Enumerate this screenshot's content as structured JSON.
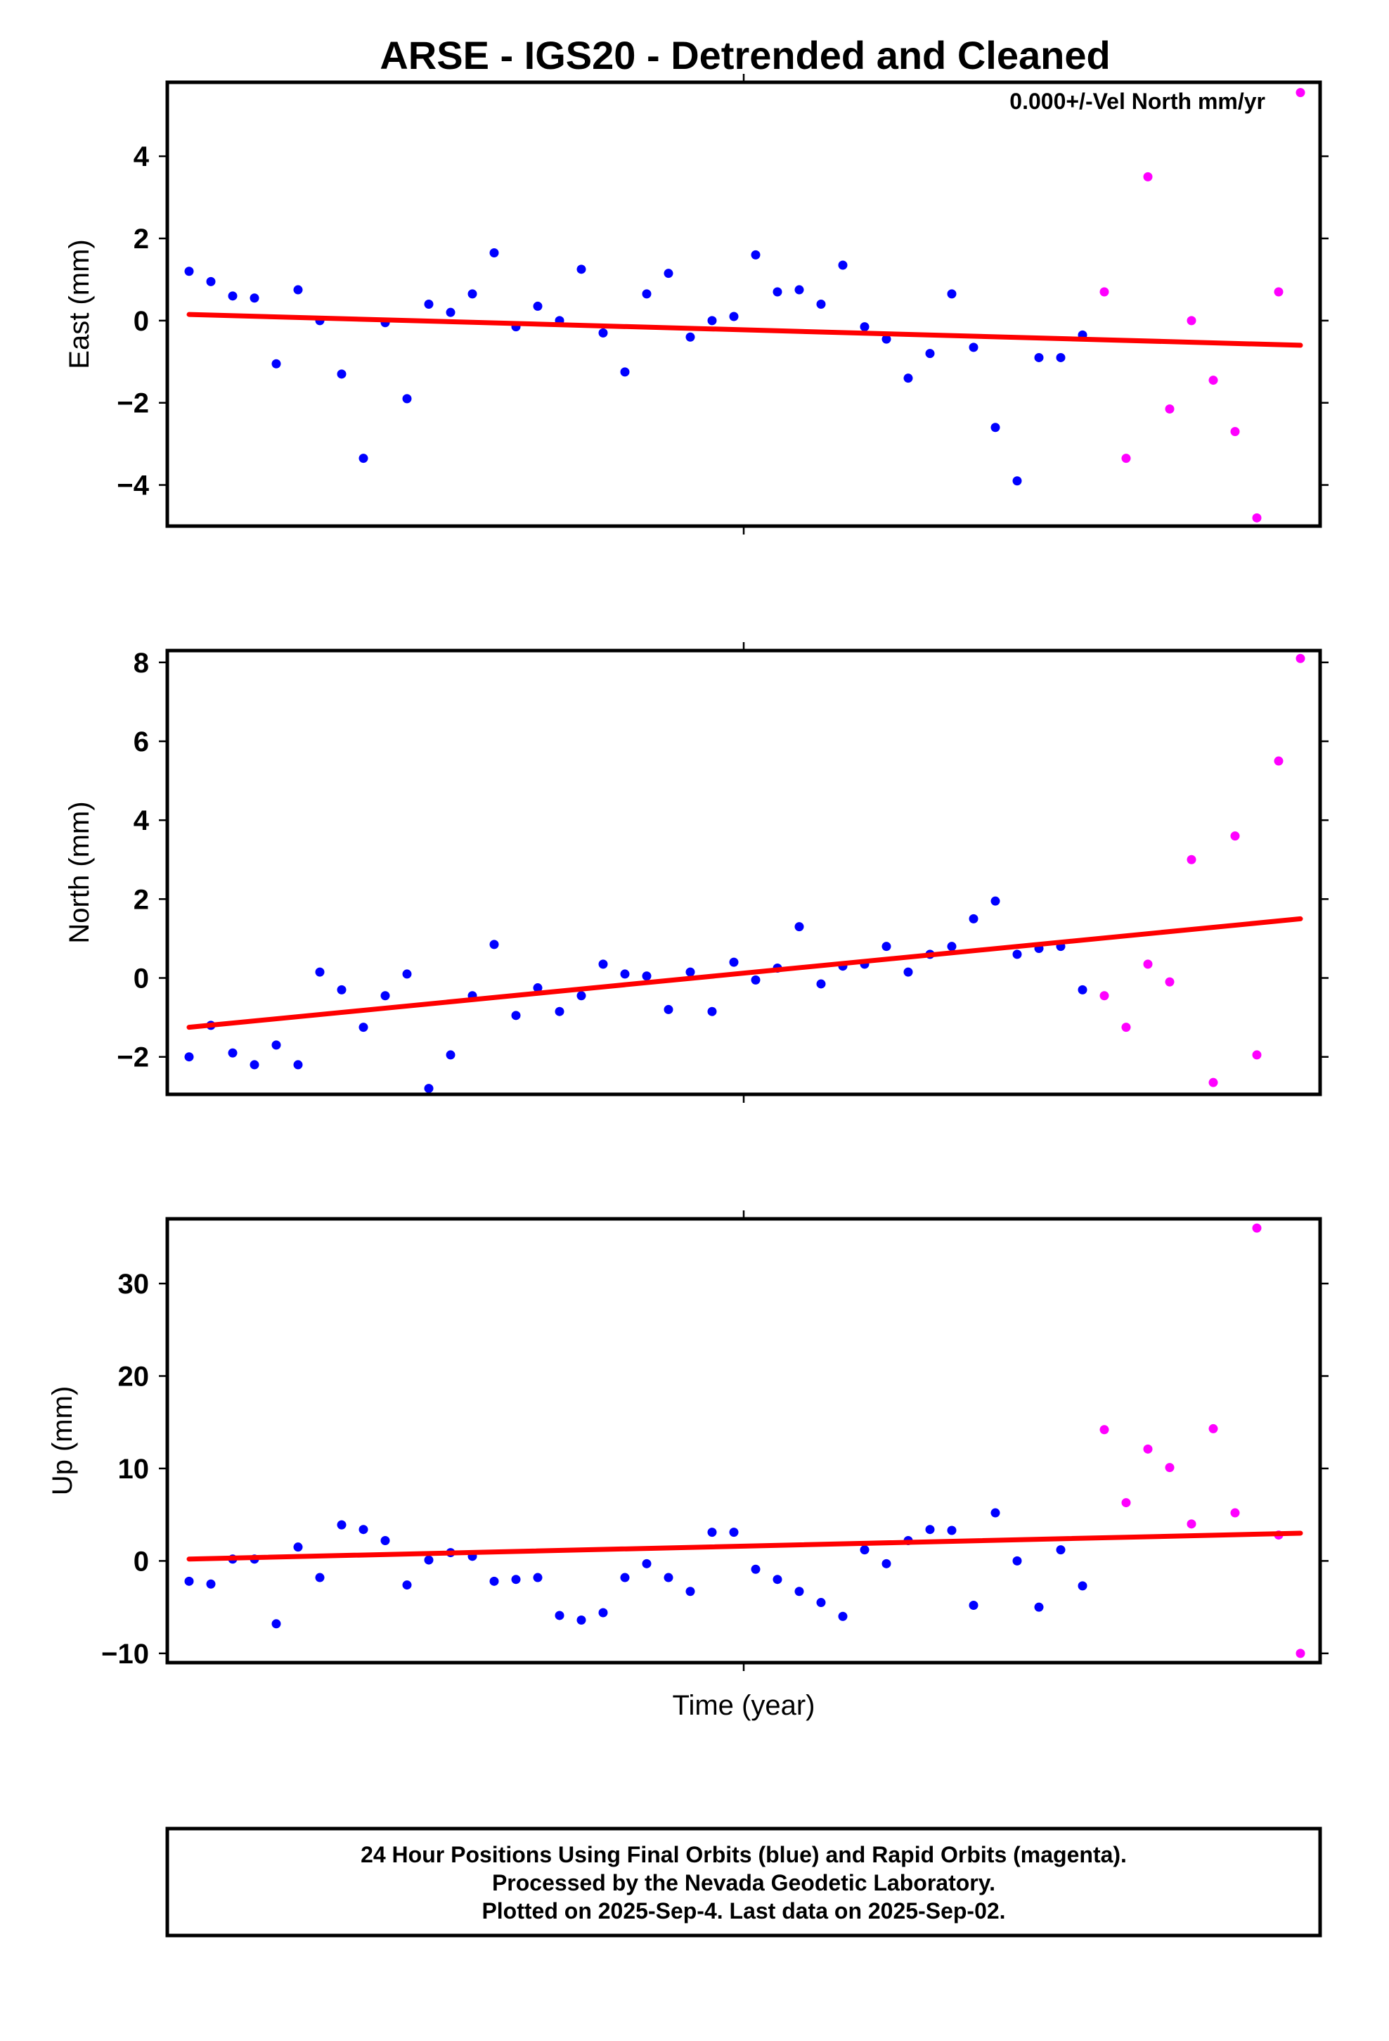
{
  "chart_data": {
    "type": "scatter",
    "title": "ARSE - IGS20 - Detrended and Cleaned",
    "xlabel": "Time (year)",
    "annotation": "0.000+/-Vel North mm/yr",
    "colors": {
      "final": "#0000ff",
      "rapid": "#ff00ff",
      "trend": "#ff0000",
      "axis": "#000000"
    },
    "panels": [
      {
        "id": "east",
        "ylabel": "East (mm)",
        "ylim": [
          -5.0,
          5.8
        ],
        "yticks": [
          4,
          2,
          0,
          -2,
          -4
        ],
        "ytick_labels": [
          "4",
          "2",
          "0",
          "−2",
          "−4"
        ],
        "trend": [
          0.15,
          -0.6
        ],
        "series": [
          {
            "name": "final",
            "x": [
              0,
              1,
              2,
              3,
              4,
              5,
              6,
              7,
              8,
              9,
              10,
              11,
              12,
              13,
              14,
              15,
              16,
              17,
              18,
              19,
              20,
              21,
              22,
              23,
              24,
              25,
              26,
              27,
              28,
              29,
              30,
              31,
              32,
              33,
              34,
              35,
              36,
              37,
              38,
              39,
              40,
              41
            ],
            "values": [
              1.2,
              0.95,
              0.6,
              0.55,
              -1.05,
              0.75,
              0.0,
              -1.3,
              -3.35,
              -0.05,
              -1.9,
              0.4,
              0.2,
              0.65,
              1.65,
              -0.15,
              0.35,
              0.0,
              1.25,
              -0.3,
              -1.25,
              0.65,
              1.15,
              -0.4,
              0.0,
              0.1,
              1.6,
              0.7,
              0.75,
              0.4,
              1.35,
              -0.15,
              -0.45,
              -1.4,
              -0.8,
              0.65,
              -0.65,
              -2.6,
              -3.9,
              -0.9,
              -0.9,
              -0.35
            ]
          },
          {
            "name": "rapid",
            "x": [
              42,
              43,
              44,
              45,
              46,
              47,
              48,
              49,
              50,
              51
            ],
            "values": [
              0.7,
              -3.35,
              3.5,
              -2.15,
              0.0,
              -1.45,
              -2.7,
              -4.8,
              0.7,
              5.55
            ]
          }
        ]
      },
      {
        "id": "north",
        "ylabel": "North (mm)",
        "ylim": [
          -2.95,
          8.3
        ],
        "yticks": [
          8,
          6,
          4,
          2,
          0,
          -2
        ],
        "ytick_labels": [
          "8",
          "6",
          "4",
          "2",
          "0",
          "−2"
        ],
        "trend": [
          -1.25,
          1.5
        ],
        "series": [
          {
            "name": "final",
            "x": [
              0,
              1,
              2,
              3,
              4,
              5,
              6,
              7,
              8,
              9,
              10,
              11,
              12,
              13,
              14,
              15,
              16,
              17,
              18,
              19,
              20,
              21,
              22,
              23,
              24,
              25,
              26,
              27,
              28,
              29,
              30,
              31,
              32,
              33,
              34,
              35,
              36,
              37,
              38,
              39,
              40,
              41
            ],
            "values": [
              -2.0,
              -1.2,
              -1.9,
              -2.2,
              -1.7,
              -2.2,
              0.15,
              -0.3,
              -1.25,
              -0.45,
              0.1,
              -2.8,
              -1.95,
              -0.45,
              0.85,
              -0.95,
              -0.25,
              -0.85,
              -0.45,
              0.35,
              0.1,
              0.05,
              -0.8,
              0.15,
              -0.85,
              0.4,
              -0.05,
              0.25,
              1.3,
              -0.15,
              0.3,
              0.35,
              0.8,
              0.15,
              0.6,
              0.8,
              1.5,
              1.95,
              0.6,
              0.75,
              0.8,
              -0.3
            ]
          },
          {
            "name": "rapid",
            "x": [
              42,
              43,
              44,
              45,
              46,
              47,
              48,
              49,
              50,
              51
            ],
            "values": [
              -0.45,
              -1.25,
              0.35,
              -0.1,
              3.0,
              -2.65,
              3.6,
              -1.95,
              5.5,
              8.1
            ]
          }
        ]
      },
      {
        "id": "up",
        "ylabel": "Up (mm)",
        "ylim": [
          -11,
          37
        ],
        "yticks": [
          30,
          20,
          10,
          0,
          -10
        ],
        "ytick_labels": [
          "30",
          "20",
          "10",
          "0",
          "−10"
        ],
        "trend": [
          0.2,
          3.0
        ],
        "series": [
          {
            "name": "final",
            "x": [
              0,
              1,
              2,
              3,
              4,
              5,
              6,
              7,
              8,
              9,
              10,
              11,
              12,
              13,
              14,
              15,
              16,
              17,
              18,
              19,
              20,
              21,
              22,
              23,
              24,
              25,
              26,
              27,
              28,
              29,
              30,
              31,
              32,
              33,
              34,
              35,
              36,
              37,
              38,
              39,
              40,
              41
            ],
            "values": [
              -2.2,
              -2.5,
              0.2,
              0.2,
              -6.8,
              1.5,
              -1.8,
              3.9,
              3.4,
              2.2,
              -2.6,
              0.1,
              0.9,
              0.5,
              -2.2,
              -2.0,
              -1.8,
              -5.9,
              -6.4,
              -5.6,
              -1.8,
              -0.3,
              -1.8,
              -3.3,
              3.1,
              3.1,
              -0.9,
              -2.0,
              -3.3,
              -4.5,
              -6.0,
              1.2,
              -0.3,
              2.2,
              3.4,
              3.3,
              -4.8,
              5.2,
              0.0,
              -5.0,
              1.2,
              -2.7
            ]
          },
          {
            "name": "rapid",
            "x": [
              42,
              43,
              44,
              45,
              46,
              47,
              48,
              49,
              50,
              51
            ],
            "values": [
              14.2,
              6.3,
              12.1,
              10.1,
              4.0,
              14.3,
              5.2,
              36.0,
              2.8,
              -10.0
            ]
          }
        ]
      }
    ]
  },
  "footer": {
    "line1": "24 Hour Positions Using Final Orbits (blue) and Rapid Orbits (magenta).",
    "line2": "Processed by the Nevada Geodetic Laboratory.",
    "line3": "Plotted on 2025-Sep-4. Last data on 2025-Sep-02."
  }
}
